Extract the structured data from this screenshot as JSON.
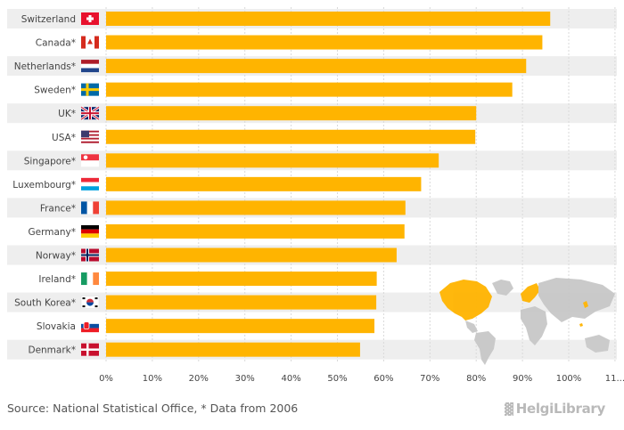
{
  "chart_data": {
    "type": "bar",
    "orientation": "horizontal",
    "categories": [
      "Switzerland",
      "Canada*",
      "Netherlands*",
      "Sweden*",
      "UK*",
      "USA*",
      "Singapore*",
      "Luxembourg*",
      "France*",
      "Germany*",
      "Norway*",
      "Ireland*",
      "South Korea*",
      "Slovakia",
      "Denmark*"
    ],
    "values": [
      96,
      94.3,
      90.8,
      87.8,
      80,
      79.8,
      71.9,
      68.1,
      64.7,
      64.5,
      62.8,
      58.5,
      58.4,
      58,
      54.9
    ],
    "xlim": [
      0,
      110
    ],
    "xticks": [
      "0%",
      "10%",
      "20%",
      "30%",
      "40%",
      "50%",
      "60%",
      "70%",
      "80%",
      "90%",
      "100%",
      "11..."
    ],
    "flags": [
      "switzerland-flag",
      "canada-flag",
      "netherlands-flag",
      "sweden-flag",
      "uk-flag",
      "usa-flag",
      "singapore-flag",
      "luxembourg-flag",
      "france-flag",
      "germany-flag",
      "norway-flag",
      "ireland-flag",
      "south-korea-flag",
      "slovakia-flag",
      "denmark-flag"
    ],
    "bar_color": "#ffb400",
    "title": "",
    "xlabel": "",
    "ylabel": ""
  },
  "footer": {
    "source": "Source: National Statistical Office, * Data from 2006",
    "logo": "HelgiLibrary",
    "logo_glyph": "▓"
  },
  "colors": {
    "row_background": "#eeeeee",
    "map_land": "#c8c8c8",
    "map_highlight": "#ffb400"
  }
}
